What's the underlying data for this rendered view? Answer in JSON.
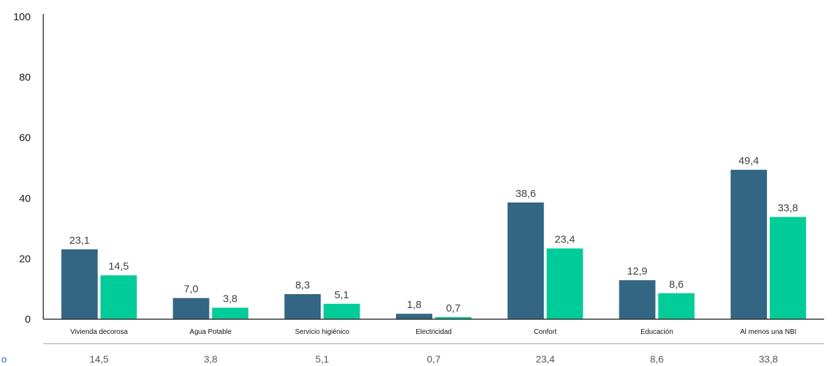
{
  "chart_data": {
    "type": "bar",
    "ylim": [
      0,
      100
    ],
    "yticks": [
      "0",
      "20",
      "40",
      "60",
      "80",
      "100"
    ],
    "categories": [
      "Vivienda decorosa",
      "Agua Potable",
      "Servicio higiénico",
      "Electricidad",
      "Confort",
      "Educación",
      "Al menos una NBI"
    ],
    "series": [
      {
        "values": [
          23.1,
          7.0,
          8.3,
          1.8,
          38.6,
          12.9,
          49.4
        ],
        "labels": [
          "23,1",
          "7,0",
          "8,3",
          "1,8",
          "38,6",
          "12,9",
          "49,4"
        ],
        "color": "#336682"
      },
      {
        "values": [
          14.5,
          3.8,
          5.1,
          0.7,
          23.4,
          8.6,
          33.8
        ],
        "labels": [
          "14,5",
          "3,8",
          "5,1",
          "0,7",
          "23,4",
          "8,6",
          "33,8"
        ],
        "color": "#00cc99"
      }
    ],
    "table": {
      "row_label": "o",
      "values": [
        "14,5",
        "3,8",
        "5,1",
        "0,7",
        "23,4",
        "8,6",
        "33,8"
      ]
    },
    "grid": false,
    "legend": "none"
  },
  "colors": {
    "axis": "#333333",
    "table_rule": "#999999",
    "table_label": "#2a6db5"
  }
}
